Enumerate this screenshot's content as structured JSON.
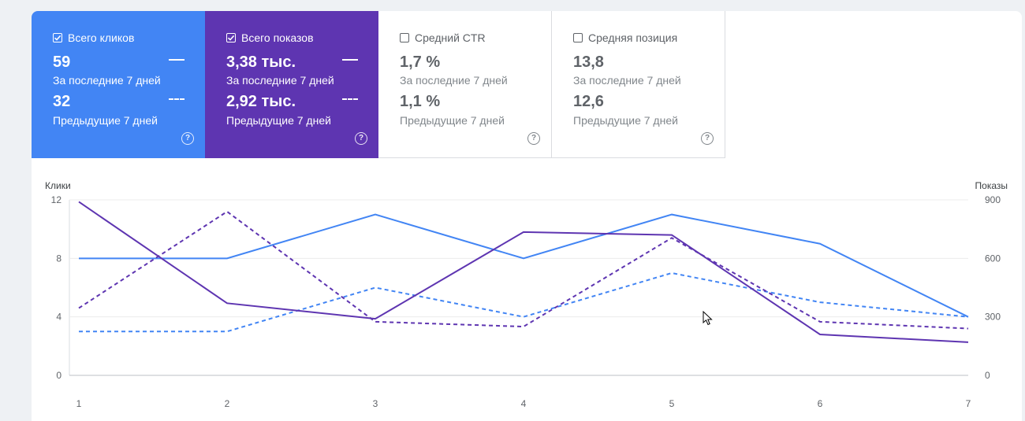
{
  "metrics": [
    {
      "key": "clicks",
      "label": "Всего кликов",
      "checked": true,
      "color": "#4285f4",
      "value_current": "59",
      "label_current": "За последние 7 дней",
      "value_previous": "32",
      "label_previous": "Предыдущие 7 дней"
    },
    {
      "key": "impressions",
      "label": "Всего показов",
      "checked": true,
      "color": "#5e35b1",
      "value_current": "3,38 тыс.",
      "label_current": "За последние 7 дней",
      "value_previous": "2,92 тыс.",
      "label_previous": "Предыдущие 7 дней"
    },
    {
      "key": "ctr",
      "label": "Средний CTR",
      "checked": false,
      "value_current": "1,7 %",
      "label_current": "За последние 7 дней",
      "value_previous": "1,1 %",
      "label_previous": "Предыдущие 7 дней"
    },
    {
      "key": "position",
      "label": "Средняя позиция",
      "checked": false,
      "value_current": "13,8",
      "label_current": "За последние 7 дней",
      "value_previous": "12,6",
      "label_previous": "Предыдущие 7 дней"
    }
  ],
  "help_icon": "help-circle-icon",
  "chart_data": {
    "type": "line",
    "x": [
      1,
      2,
      3,
      4,
      5,
      6,
      7
    ],
    "y_left_label": "Клики",
    "y_right_label": "Показы",
    "y_left_ticks": [
      0,
      4,
      8,
      12
    ],
    "y_right_ticks": [
      0,
      300,
      600,
      900
    ],
    "y_left_lim": [
      0,
      12
    ],
    "y_right_lim": [
      0,
      900
    ],
    "grid": true,
    "series": [
      {
        "axis": "left",
        "style": "solid",
        "color": "#4285f4",
        "values": [
          8,
          8,
          11,
          8,
          11,
          9,
          4
        ]
      },
      {
        "axis": "left",
        "style": "dashed",
        "color": "#4285f4",
        "values": [
          3,
          3,
          6,
          4,
          7,
          5,
          4
        ]
      },
      {
        "axis": "right",
        "style": "solid",
        "color": "#5e35b1",
        "values": [
          890,
          370,
          290,
          735,
          720,
          210,
          170
        ]
      },
      {
        "axis": "right",
        "style": "dashed",
        "color": "#5e35b1",
        "values": [
          345,
          840,
          275,
          250,
          705,
          275,
          240
        ]
      }
    ]
  }
}
